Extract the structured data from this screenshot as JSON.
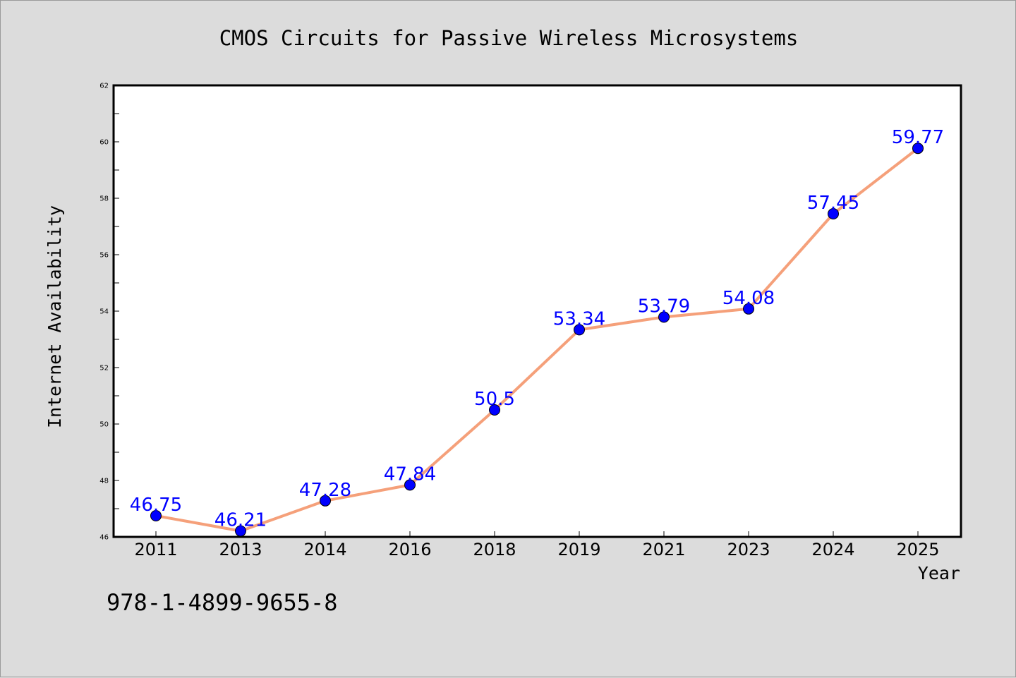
{
  "chart_data": {
    "type": "line",
    "title": "CMOS Circuits for Passive Wireless Microsystems",
    "xlabel": "Year",
    "ylabel": "Internet Availability",
    "categories": [
      "2011",
      "2013",
      "2014",
      "2016",
      "2018",
      "2019",
      "2021",
      "2023",
      "2024",
      "2025"
    ],
    "series": [
      {
        "values": [
          46.75,
          46.21,
          47.28,
          47.84,
          50.5,
          53.34,
          53.79,
          54.08,
          57.45,
          59.77
        ],
        "labels": [
          "46.75",
          "46.21",
          "47.28",
          "47.84",
          "50.5",
          "53.34",
          "53.79",
          "54.08",
          "57.45",
          "59.77"
        ],
        "line_color": "#f5a07a",
        "marker_color": "#0000ff",
        "label_color": "#0000ff"
      }
    ],
    "ylim": [
      46,
      62
    ],
    "yticks": [
      "46",
      "48",
      "50",
      "52",
      "54",
      "56",
      "58",
      "60",
      "62"
    ],
    "grid": false,
    "legend": "none"
  },
  "footer": {
    "isbn": "978-1-4899-9655-8"
  },
  "colors": {
    "background": "#dcdcdc",
    "plot_background": "#ffffff",
    "line": "#f5a07a",
    "marker": "#0000ff",
    "data_label": "#0000ff"
  }
}
